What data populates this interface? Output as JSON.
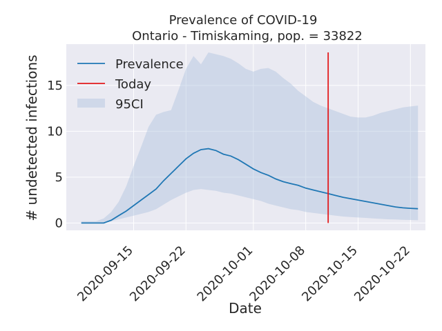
{
  "chart_data": {
    "type": "line",
    "title": "Prevalence of COVID-19",
    "subtitle": "Ontario - Timiskaming, pop. = 33822",
    "xlabel": "Date",
    "ylabel": "# undetected infections",
    "x_ticks": [
      "2020-09-15",
      "2020-09-22",
      "2020-10-01",
      "2020-10-08",
      "2020-10-15",
      "2020-10-22"
    ],
    "y_ticks": [
      0,
      5,
      10,
      15
    ],
    "xlim": [
      "2020-09-06",
      "2020-10-24"
    ],
    "ylim": [
      -0.8,
      19.5
    ],
    "grid": true,
    "legend_position": "upper-left",
    "today": "2020-10-11",
    "today_range": [
      0,
      18.6
    ],
    "series": [
      {
        "name": "Prevalence",
        "color": "#1f77b4",
        "x": [
          "2020-09-08",
          "2020-09-09",
          "2020-09-10",
          "2020-09-11",
          "2020-09-12",
          "2020-09-13",
          "2020-09-14",
          "2020-09-15",
          "2020-09-16",
          "2020-09-17",
          "2020-09-18",
          "2020-09-19",
          "2020-09-20",
          "2020-09-21",
          "2020-09-22",
          "2020-09-23",
          "2020-09-24",
          "2020-09-25",
          "2020-09-26",
          "2020-09-27",
          "2020-09-28",
          "2020-09-29",
          "2020-09-30",
          "2020-10-01",
          "2020-10-02",
          "2020-10-03",
          "2020-10-04",
          "2020-10-05",
          "2020-10-06",
          "2020-10-07",
          "2020-10-08",
          "2020-10-09",
          "2020-10-10",
          "2020-10-11",
          "2020-10-12",
          "2020-10-13",
          "2020-10-14",
          "2020-10-15",
          "2020-10-16",
          "2020-10-17",
          "2020-10-18",
          "2020-10-19",
          "2020-10-20",
          "2020-10-21",
          "2020-10-22",
          "2020-10-23"
        ],
        "values": [
          0,
          0,
          0,
          0,
          0.3,
          0.8,
          1.3,
          1.9,
          2.5,
          3.1,
          3.7,
          4.6,
          5.4,
          6.2,
          7.0,
          7.6,
          8.0,
          8.1,
          7.9,
          7.5,
          7.3,
          6.9,
          6.4,
          5.9,
          5.5,
          5.2,
          4.8,
          4.5,
          4.3,
          4.1,
          3.8,
          3.6,
          3.4,
          3.2,
          3.0,
          2.8,
          2.65,
          2.5,
          2.35,
          2.2,
          2.05,
          1.9,
          1.75,
          1.65,
          1.6,
          1.55
        ]
      },
      {
        "name": "Today",
        "color": "#e31a1c"
      },
      {
        "name": "95CI",
        "type": "area",
        "color": "#b0c4de",
        "x": [
          "2020-09-08",
          "2020-09-09",
          "2020-09-10",
          "2020-09-11",
          "2020-09-12",
          "2020-09-13",
          "2020-09-14",
          "2020-09-15",
          "2020-09-16",
          "2020-09-17",
          "2020-09-18",
          "2020-09-19",
          "2020-09-20",
          "2020-09-21",
          "2020-09-22",
          "2020-09-23",
          "2020-09-24",
          "2020-09-25",
          "2020-09-26",
          "2020-09-27",
          "2020-09-28",
          "2020-09-29",
          "2020-09-30",
          "2020-10-01",
          "2020-10-02",
          "2020-10-03",
          "2020-10-04",
          "2020-10-05",
          "2020-10-06",
          "2020-10-07",
          "2020-10-08",
          "2020-10-09",
          "2020-10-10",
          "2020-10-11",
          "2020-10-12",
          "2020-10-13",
          "2020-10-14",
          "2020-10-15",
          "2020-10-16",
          "2020-10-17",
          "2020-10-18",
          "2020-10-19",
          "2020-10-20",
          "2020-10-21",
          "2020-10-22",
          "2020-10-23"
        ],
        "lower": [
          0,
          0,
          0,
          0,
          0.2,
          0.4,
          0.6,
          0.8,
          1.0,
          1.2,
          1.5,
          2.0,
          2.5,
          2.9,
          3.3,
          3.6,
          3.7,
          3.6,
          3.5,
          3.3,
          3.2,
          3.0,
          2.8,
          2.6,
          2.4,
          2.1,
          1.9,
          1.7,
          1.5,
          1.4,
          1.2,
          1.1,
          1.0,
          0.9,
          0.8,
          0.7,
          0.65,
          0.6,
          0.55,
          0.5,
          0.45,
          0.4,
          0.38,
          0.35,
          0.33,
          0.3
        ],
        "upper": [
          0.2,
          0.2,
          0.2,
          0.5,
          1.2,
          2.3,
          4.0,
          6.2,
          8.3,
          10.5,
          11.8,
          12.1,
          12.3,
          14.5,
          16.8,
          18.2,
          17.3,
          18.6,
          18.4,
          18.2,
          17.9,
          17.4,
          16.8,
          16.5,
          16.8,
          16.9,
          16.5,
          15.8,
          15.2,
          14.4,
          13.8,
          13.2,
          12.8,
          12.5,
          12.2,
          11.9,
          11.6,
          11.5,
          11.5,
          11.7,
          12.0,
          12.2,
          12.4,
          12.6,
          12.7,
          12.8
        ]
      }
    ]
  }
}
